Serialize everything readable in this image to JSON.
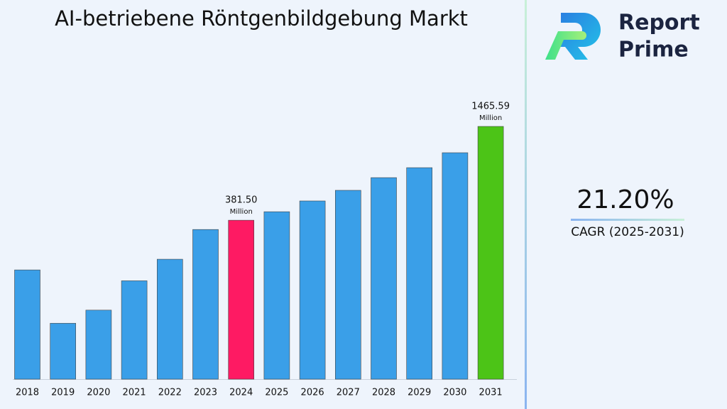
{
  "chart_data": {
    "type": "bar",
    "title": "AI-betriebene Röntgenbildgebung Markt",
    "categories": [
      "2018",
      "2019",
      "2020",
      "2021",
      "2022",
      "2023",
      "2024",
      "2025",
      "2026",
      "2027",
      "2028",
      "2029",
      "2030",
      "2031"
    ],
    "values": [
      187,
      87,
      105,
      160,
      218,
      334,
      381.5,
      431,
      503,
      586,
      703,
      811,
      1005,
      1465.59
    ],
    "value_labels": [
      null,
      null,
      null,
      null,
      null,
      null,
      "381.50",
      null,
      null,
      null,
      null,
      null,
      null,
      "1465.59"
    ],
    "unit": "Million",
    "colors": [
      "#3a9fe8",
      "#3a9fe8",
      "#3a9fe8",
      "#3a9fe8",
      "#3a9fe8",
      "#3a9fe8",
      "#fe1a63",
      "#3a9fe8",
      "#3a9fe8",
      "#3a9fe8",
      "#3a9fe8",
      "#3a9fe8",
      "#3a9fe8",
      "#4cc417"
    ],
    "ylim": [
      39,
      1950
    ],
    "log_scale": true,
    "cagr": "21.20%",
    "cagr_label": "CAGR (2025-2031)",
    "brand": [
      "Report",
      "Prime"
    ]
  }
}
